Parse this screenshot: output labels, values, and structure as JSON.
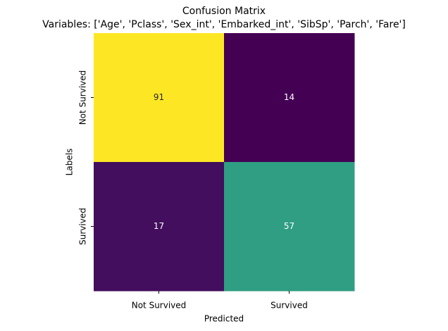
{
  "chart_data": {
    "type": "heatmap",
    "title": "Confusion Matrix",
    "subtitle": "Variables: ['Age', 'Pclass', 'Sex_int', 'Embarked_int', 'SibSp', 'Parch', 'Fare']",
    "xlabel": "Predicted",
    "ylabel": "Labels",
    "x_categories": [
      "Not Survived",
      "Survived"
    ],
    "y_categories": [
      "Not Survived",
      "Survived"
    ],
    "values": [
      [
        91,
        14
      ],
      [
        17,
        57
      ]
    ],
    "colormap": "viridis"
  }
}
